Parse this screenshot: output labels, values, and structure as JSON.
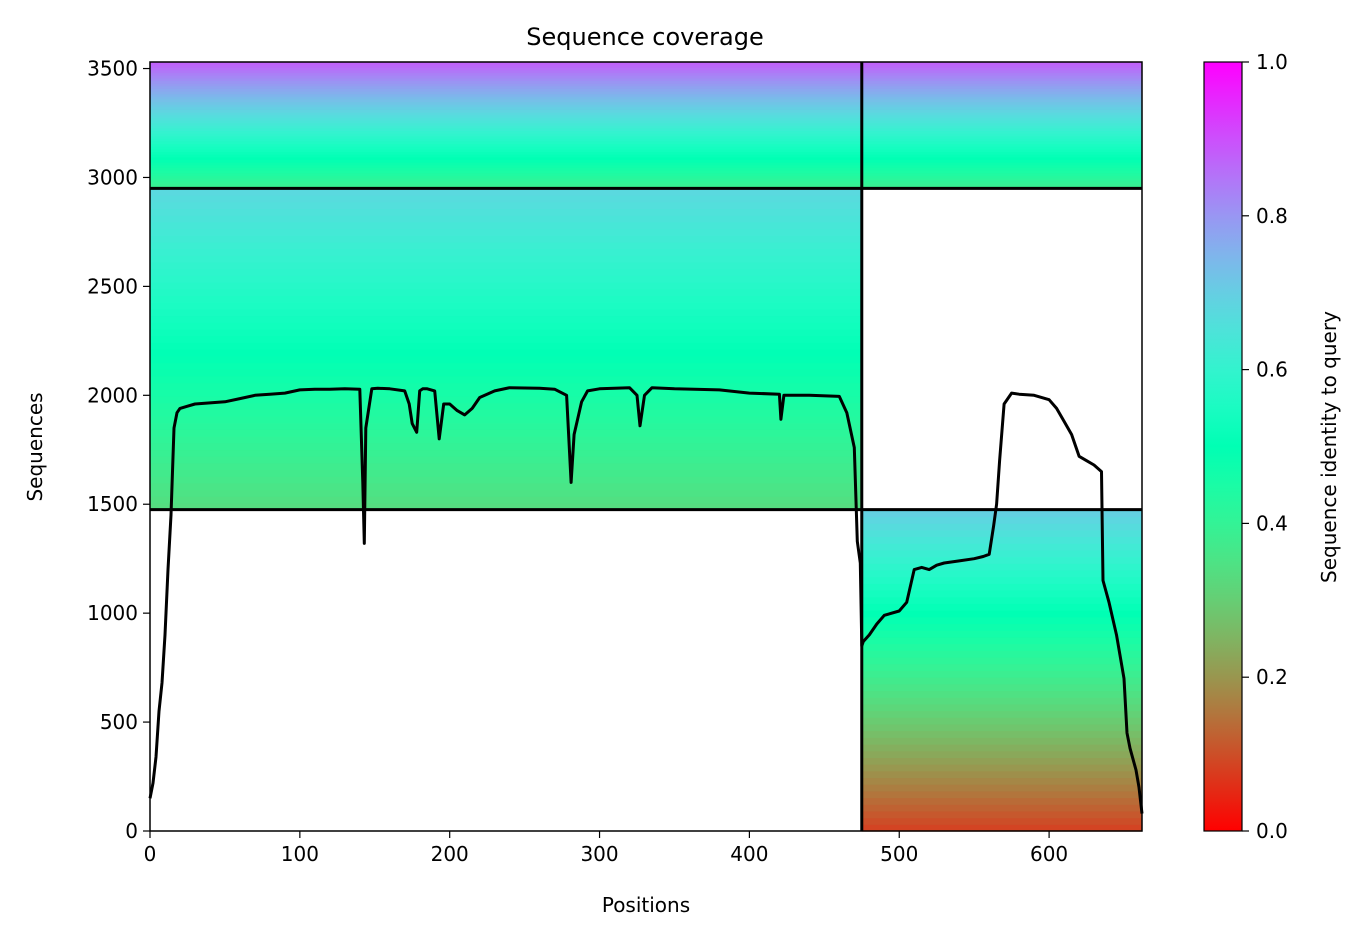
{
  "chart_data": {
    "type": "heatmap",
    "title": "Sequence coverage",
    "xlabel": "Positions",
    "ylabel": "Sequences",
    "xlim": [
      0,
      662
    ],
    "ylim": [
      0,
      3530
    ],
    "x_ticks": [
      0,
      100,
      200,
      300,
      400,
      500,
      600
    ],
    "y_ticks": [
      0,
      500,
      1000,
      1500,
      2000,
      2500,
      3000,
      3500
    ],
    "colorbar": {
      "label": "Sequence identity to query",
      "range": [
        0.0,
        1.0
      ],
      "ticks": [
        0.0,
        0.2,
        0.4,
        0.6,
        0.8,
        1.0
      ],
      "colormap": "rainbow_r"
    },
    "grid": false,
    "blocks": [
      {
        "name": "block-top-left",
        "x": [
          0,
          475
        ],
        "y": [
          2950,
          3530
        ],
        "identity_bottom": 0.38,
        "identity_top": 0.88
      },
      {
        "name": "block-top-right",
        "x": [
          475,
          662
        ],
        "y": [
          2950,
          3530
        ],
        "identity_bottom": 0.38,
        "identity_top": 0.88
      },
      {
        "name": "block-middle-left",
        "x": [
          0,
          475
        ],
        "y": [
          1475,
          2950
        ],
        "identity_bottom": 0.33,
        "identity_top": 0.68
      },
      {
        "name": "block-bottom-right",
        "x": [
          475,
          662
        ],
        "y": [
          0,
          1475
        ],
        "identity_bottom": 0.08,
        "identity_top": 0.7
      }
    ],
    "divider_lines": {
      "vertical_x": 475,
      "horizontal_y_full": 2950,
      "horizontal_y_right": 1475
    },
    "coverage_series": {
      "x": [
        0,
        2,
        4,
        6,
        8,
        10,
        12,
        14,
        16,
        18,
        20,
        25,
        30,
        40,
        50,
        60,
        70,
        80,
        90,
        100,
        110,
        120,
        130,
        140,
        142,
        143,
        144,
        146,
        148,
        152,
        160,
        170,
        173,
        175,
        178,
        180,
        182,
        185,
        190,
        193,
        196,
        200,
        205,
        210,
        215,
        220,
        230,
        240,
        260,
        270,
        278,
        281,
        283,
        285,
        288,
        292,
        300,
        320,
        325,
        327,
        330,
        335,
        350,
        380,
        400,
        420,
        421,
        423,
        440,
        460,
        465,
        470,
        472,
        474,
        475,
        476,
        480,
        485,
        490,
        500,
        505,
        510,
        515,
        520,
        525,
        530,
        540,
        550,
        556,
        560,
        563,
        565,
        567,
        570,
        575,
        580,
        590,
        600,
        605,
        610,
        615,
        620,
        625,
        630,
        635,
        636,
        638,
        640,
        645,
        650,
        652,
        654,
        658,
        660,
        662
      ],
      "y": [
        150,
        220,
        340,
        550,
        680,
        900,
        1200,
        1450,
        1850,
        1920,
        1940,
        1950,
        1960,
        1965,
        1970,
        1985,
        2000,
        2005,
        2010,
        2025,
        2028,
        2028,
        2030,
        2028,
        1600,
        1320,
        1850,
        1940,
        2030,
        2032,
        2030,
        2020,
        1960,
        1870,
        1830,
        2020,
        2030,
        2030,
        2020,
        1800,
        1960,
        1960,
        1930,
        1910,
        1940,
        1990,
        2020,
        2035,
        2032,
        2028,
        2000,
        1600,
        1820,
        1880,
        1970,
        2020,
        2030,
        2035,
        2000,
        1860,
        2000,
        2035,
        2030,
        2025,
        2010,
        2005,
        1890,
        2000,
        2000,
        1995,
        1920,
        1760,
        1330,
        1230,
        850,
        870,
        900,
        950,
        990,
        1010,
        1050,
        1200,
        1210,
        1200,
        1220,
        1230,
        1240,
        1250,
        1260,
        1270,
        1400,
        1500,
        1700,
        1960,
        2010,
        2005,
        2000,
        1980,
        1940,
        1880,
        1820,
        1720,
        1700,
        1680,
        1650,
        1150,
        1100,
        1050,
        900,
        700,
        450,
        380,
        280,
        200,
        80
      ]
    }
  }
}
